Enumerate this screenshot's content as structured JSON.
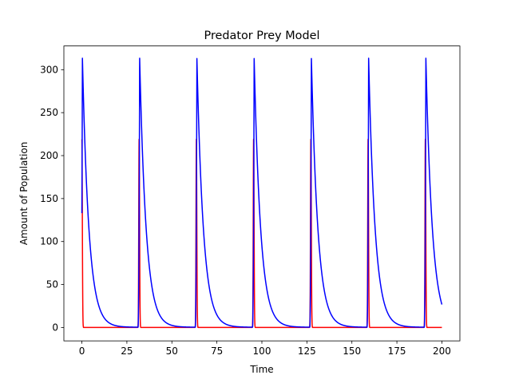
{
  "chart_data": {
    "type": "line",
    "title": "Predator Prey Model",
    "xlabel": "Time",
    "ylabel": "Amount of Population",
    "xlim": [
      -10,
      210
    ],
    "ylim": [
      -15.6,
      327.6
    ],
    "xticks": [
      0,
      25,
      50,
      75,
      100,
      125,
      150,
      175,
      200
    ],
    "yticks": [
      0,
      50,
      100,
      150,
      200,
      250,
      300
    ],
    "grid": false,
    "legend": "none",
    "x_range": [
      0,
      200
    ],
    "cycle_times": [
      0,
      31.8,
      63.6,
      95.4,
      127.2,
      159.0,
      190.8
    ],
    "series": [
      {
        "color": "#ff0000",
        "peak": 219,
        "baseline": 0,
        "shape": "sharp spike at the start of each cycle, returning to 0 between spikes"
      },
      {
        "color": "#0000ff",
        "peak": 313,
        "min": 0.3,
        "end_value": 22,
        "shape": "sharp rise to peak at each cycle start followed by slow exponential decay"
      }
    ]
  }
}
